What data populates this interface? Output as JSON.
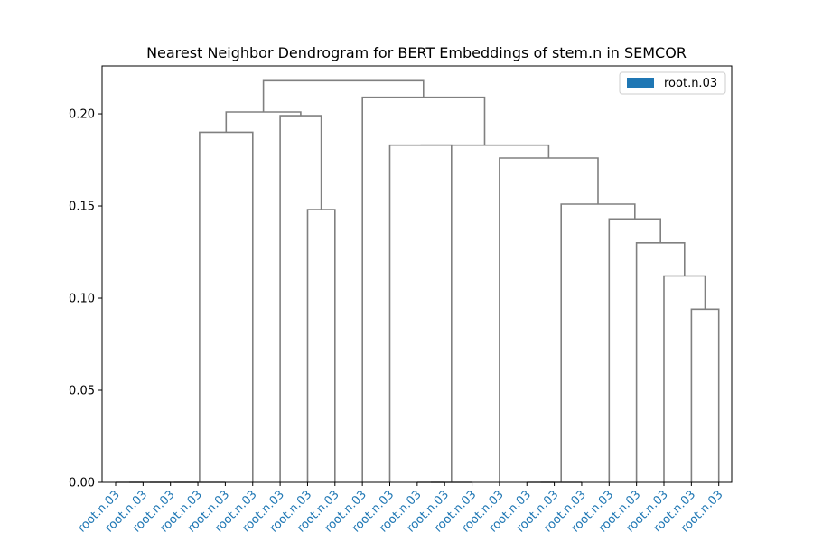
{
  "chart_data": {
    "type": "dendrogram",
    "title": "Nearest Neighbor Dendrogram for BERT Embeddings of stem.n in SEMCOR",
    "xlabel": "",
    "ylabel": "",
    "ylim": [
      0,
      0.226
    ],
    "yticks": [
      0.0,
      0.05,
      0.1,
      0.15,
      0.2
    ],
    "ytick_labels": [
      "0.00",
      "0.05",
      "0.10",
      "0.15",
      "0.20"
    ],
    "grid": false,
    "legend_position": "top-right",
    "legend": [
      {
        "label": "root.n.03",
        "color": "#1f77b4"
      }
    ],
    "leaf_labels": [
      "root.n.03",
      "root.n.03",
      "root.n.03",
      "root.n.03",
      "root.n.03",
      "root.n.03",
      "root.n.03",
      "root.n.03",
      "root.n.03",
      "root.n.03",
      "root.n.03",
      "root.n.03",
      "root.n.03",
      "root.n.03",
      "root.n.03",
      "root.n.03",
      "root.n.03",
      "root.n.03",
      "root.n.03",
      "root.n.03",
      "root.n.03",
      "root.n.03",
      "root.n.03"
    ],
    "leaf_label_color": "#1f77b4",
    "link_color": "#808080",
    "merges": [
      {
        "left": 0,
        "right": 1,
        "height": 0.0
      },
      {
        "left": 23,
        "right": 2,
        "height": 0.0
      },
      {
        "left": 24,
        "right": 3,
        "height": 0.0
      },
      {
        "left": 25,
        "right": 4,
        "height": 0.0
      },
      {
        "left": 5,
        "right": 26,
        "height": 0.19
      },
      {
        "left": 7,
        "right": 8,
        "height": 0.148
      },
      {
        "left": 6,
        "right": 28,
        "height": 0.199
      },
      {
        "left": 27,
        "right": 29,
        "height": 0.201
      },
      {
        "left": 11,
        "right": 12,
        "height": 0.0
      },
      {
        "left": 31,
        "right": 13,
        "height": 0.0
      },
      {
        "left": 10,
        "right": 32,
        "height": 0.183
      },
      {
        "left": 15,
        "right": 16,
        "height": 0.0
      },
      {
        "left": 34,
        "right": 17,
        "height": 0.0
      },
      {
        "left": 21,
        "right": 22,
        "height": 0.094
      },
      {
        "left": 20,
        "right": 36,
        "height": 0.112
      },
      {
        "left": 19,
        "right": 37,
        "height": 0.13
      },
      {
        "left": 18,
        "right": 38,
        "height": 0.143
      },
      {
        "left": 35,
        "right": 39,
        "height": 0.151
      },
      {
        "left": 14,
        "right": 40,
        "height": 0.176
      },
      {
        "left": 33,
        "right": 41,
        "height": 0.183
      },
      {
        "left": 9,
        "right": 42,
        "height": 0.209
      },
      {
        "left": 30,
        "right": 43,
        "height": 0.218
      }
    ]
  }
}
